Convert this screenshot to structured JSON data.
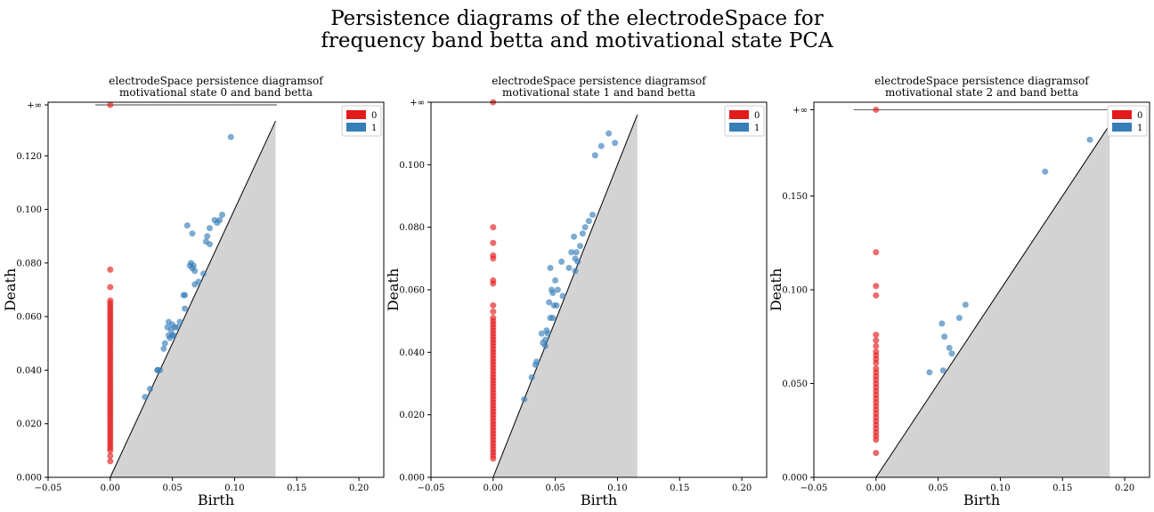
{
  "figure": {
    "suptitle_line1": "Persistence diagrams of the electrodeSpace for",
    "suptitle_line2": "frequency band betta and motivational state PCA"
  },
  "colors": {
    "h0": "#e31a1c",
    "h1": "#377eb8",
    "diagonal_fill": "#d3d3d3",
    "axis": "#000000"
  },
  "chart_data": [
    {
      "type": "scatter",
      "title_line1": "electrodeSpace persistence diagramsof",
      "title_line2": "motivational state 0 and band betta",
      "xlabel": "Birth",
      "ylabel": "Death",
      "xlim": [
        -0.05,
        0.22
      ],
      "ylim": [
        0.0,
        0.14
      ],
      "xticks": [
        -0.05,
        0.0,
        0.05,
        0.1,
        0.15,
        0.2
      ],
      "xtick_labels": [
        "−0.05",
        "0.00",
        "0.05",
        "0.10",
        "0.15",
        "0.20"
      ],
      "yticks": [
        0.0,
        0.02,
        0.04,
        0.06,
        0.08,
        0.1,
        0.12
      ],
      "ytick_labels": [
        "0.000",
        "0.020",
        "0.040",
        "0.060",
        "0.080",
        "0.100",
        "0.120"
      ],
      "inf_label": "+∞",
      "inf_value": 0.139,
      "inf_line_x": [
        -0.012,
        0.134
      ],
      "diagonal_max": 0.133,
      "legend": [
        "0",
        "1"
      ],
      "legend_position": "top-right",
      "series": [
        {
          "name": "0",
          "births": [
            0.0
          ],
          "deaths": [
            0.0775,
            0.071,
            0.066,
            0.065,
            0.064,
            0.063,
            0.062,
            0.061,
            0.06,
            0.059,
            0.058,
            0.057,
            0.056,
            0.055,
            0.054,
            0.053,
            0.052,
            0.051,
            0.05,
            0.049,
            0.048,
            0.047,
            0.046,
            0.045,
            0.044,
            0.043,
            0.042,
            0.041,
            0.04,
            0.039,
            0.038,
            0.037,
            0.036,
            0.035,
            0.034,
            0.033,
            0.032,
            0.031,
            0.03,
            0.029,
            0.028,
            0.027,
            0.026,
            0.025,
            0.024,
            0.023,
            0.022,
            0.021,
            0.02,
            0.019,
            0.018,
            0.017,
            0.016,
            0.015,
            0.014,
            0.013,
            0.012,
            0.011,
            0.01,
            0.008,
            0.006
          ],
          "infinite_births": [
            0.0
          ]
        },
        {
          "name": "1",
          "points": [
            [
              0.097,
              0.127
            ],
            [
              0.062,
              0.094
            ],
            [
              0.066,
              0.091
            ],
            [
              0.08,
              0.093
            ],
            [
              0.084,
              0.096
            ],
            [
              0.086,
              0.095
            ],
            [
              0.09,
              0.098
            ],
            [
              0.088,
              0.096
            ],
            [
              0.078,
              0.09
            ],
            [
              0.077,
              0.088
            ],
            [
              0.08,
              0.087
            ],
            [
              0.065,
              0.08
            ],
            [
              0.067,
              0.079
            ],
            [
              0.066,
              0.078
            ],
            [
              0.064,
              0.079
            ],
            [
              0.068,
              0.077
            ],
            [
              0.075,
              0.076
            ],
            [
              0.071,
              0.073
            ],
            [
              0.068,
              0.072
            ],
            [
              0.06,
              0.068
            ],
            [
              0.059,
              0.068
            ],
            [
              0.06,
              0.063
            ],
            [
              0.056,
              0.058
            ],
            [
              0.047,
              0.058
            ],
            [
              0.05,
              0.057
            ],
            [
              0.052,
              0.056
            ],
            [
              0.054,
              0.056
            ],
            [
              0.046,
              0.056
            ],
            [
              0.049,
              0.055
            ],
            [
              0.05,
              0.053
            ],
            [
              0.051,
              0.053
            ],
            [
              0.047,
              0.053
            ],
            [
              0.048,
              0.052
            ],
            [
              0.044,
              0.05
            ],
            [
              0.043,
              0.048
            ],
            [
              0.04,
              0.04
            ],
            [
              0.038,
              0.04
            ],
            [
              0.038,
              0.04
            ],
            [
              0.032,
              0.033
            ],
            [
              0.028,
              0.03
            ]
          ]
        }
      ]
    },
    {
      "type": "scatter",
      "title_line1": "electrodeSpace persistence diagramsof",
      "title_line2": "motivational state 1 and band betta",
      "xlabel": "Birth",
      "ylabel": "Death",
      "xlim": [
        -0.05,
        0.22
      ],
      "ylim": [
        0.0,
        0.12
      ],
      "xticks": [
        -0.05,
        0.0,
        0.05,
        0.1,
        0.15,
        0.2
      ],
      "xtick_labels": [
        "−0.05",
        "0.00",
        "0.05",
        "0.10",
        "0.15",
        "0.20"
      ],
      "yticks": [
        0.0,
        0.02,
        0.04,
        0.06,
        0.08,
        0.1
      ],
      "ytick_labels": [
        "0.000",
        "0.020",
        "0.040",
        "0.060",
        "0.080",
        "0.100"
      ],
      "inf_label": "+∞",
      "inf_value": 0.12,
      "inf_line_x": [
        -0.012,
        0.116
      ],
      "diagonal_max": 0.116,
      "legend": [
        "0",
        "1"
      ],
      "legend_position": "top-right",
      "series": [
        {
          "name": "0",
          "births": [
            0.0
          ],
          "deaths": [
            0.08,
            0.075,
            0.071,
            0.07,
            0.063,
            0.062,
            0.055,
            0.053,
            0.051,
            0.05,
            0.049,
            0.048,
            0.047,
            0.046,
            0.045,
            0.044,
            0.043,
            0.042,
            0.041,
            0.04,
            0.039,
            0.038,
            0.037,
            0.036,
            0.035,
            0.034,
            0.033,
            0.032,
            0.031,
            0.03,
            0.029,
            0.028,
            0.027,
            0.026,
            0.025,
            0.024,
            0.023,
            0.022,
            0.021,
            0.02,
            0.019,
            0.018,
            0.017,
            0.016,
            0.015,
            0.014,
            0.013,
            0.012,
            0.011,
            0.01,
            0.009,
            0.008,
            0.007,
            0.006
          ],
          "infinite_births": [
            0.0
          ]
        },
        {
          "name": "1",
          "points": [
            [
              0.093,
              0.11
            ],
            [
              0.098,
              0.107
            ],
            [
              0.087,
              0.106
            ],
            [
              0.082,
              0.103
            ],
            [
              0.08,
              0.084
            ],
            [
              0.077,
              0.082
            ],
            [
              0.074,
              0.08
            ],
            [
              0.072,
              0.078
            ],
            [
              0.065,
              0.077
            ],
            [
              0.07,
              0.074
            ],
            [
              0.067,
              0.072
            ],
            [
              0.063,
              0.072
            ],
            [
              0.066,
              0.07
            ],
            [
              0.068,
              0.069
            ],
            [
              0.066,
              0.066
            ],
            [
              0.061,
              0.067
            ],
            [
              0.055,
              0.069
            ],
            [
              0.046,
              0.067
            ],
            [
              0.05,
              0.063
            ],
            [
              0.047,
              0.06
            ],
            [
              0.052,
              0.06
            ],
            [
              0.056,
              0.058
            ],
            [
              0.048,
              0.059
            ],
            [
              0.045,
              0.056
            ],
            [
              0.049,
              0.055
            ],
            [
              0.051,
              0.055
            ],
            [
              0.046,
              0.051
            ],
            [
              0.048,
              0.051
            ],
            [
              0.043,
              0.047
            ],
            [
              0.039,
              0.046
            ],
            [
              0.044,
              0.046
            ],
            [
              0.042,
              0.044
            ],
            [
              0.04,
              0.043
            ],
            [
              0.042,
              0.042
            ],
            [
              0.035,
              0.037
            ],
            [
              0.034,
              0.036
            ],
            [
              0.031,
              0.032
            ],
            [
              0.025,
              0.025
            ]
          ]
        }
      ]
    },
    {
      "type": "scatter",
      "title_line1": "electrodeSpace persistence diagramsof",
      "title_line2": "motivational state 2 and band betta",
      "xlabel": "Birth",
      "ylabel": "Death",
      "xlim": [
        -0.05,
        0.22
      ],
      "ylim": [
        0.0,
        0.2
      ],
      "xticks": [
        -0.05,
        0.0,
        0.05,
        0.1,
        0.15,
        0.2
      ],
      "xtick_labels": [
        "−0.05",
        "0.00",
        "0.05",
        "0.10",
        "0.15",
        "0.20"
      ],
      "yticks": [
        0.0,
        0.05,
        0.1,
        0.15
      ],
      "ytick_labels": [
        "0.000",
        "0.050",
        "0.100",
        "0.150"
      ],
      "inf_label": "+∞",
      "inf_value": 0.196,
      "inf_line_x": [
        -0.018,
        0.188
      ],
      "diagonal_max": 0.188,
      "legend": [
        "0",
        "1"
      ],
      "legend_position": "top-right",
      "series": [
        {
          "name": "0",
          "births": [
            0.0
          ],
          "deaths": [
            0.12,
            0.102,
            0.097,
            0.076,
            0.073,
            0.07,
            0.067,
            0.065,
            0.063,
            0.061,
            0.058,
            0.056,
            0.054,
            0.052,
            0.05,
            0.048,
            0.046,
            0.044,
            0.042,
            0.04,
            0.038,
            0.036,
            0.034,
            0.032,
            0.03,
            0.028,
            0.026,
            0.024,
            0.022,
            0.02,
            0.013
          ],
          "infinite_births": [
            0.0
          ]
        },
        {
          "name": "1",
          "points": [
            [
              0.172,
              0.18
            ],
            [
              0.136,
              0.163
            ],
            [
              0.072,
              0.092
            ],
            [
              0.067,
              0.085
            ],
            [
              0.053,
              0.082
            ],
            [
              0.055,
              0.075
            ],
            [
              0.059,
              0.069
            ],
            [
              0.061,
              0.066
            ],
            [
              0.043,
              0.056
            ],
            [
              0.054,
              0.057
            ]
          ]
        }
      ]
    }
  ]
}
